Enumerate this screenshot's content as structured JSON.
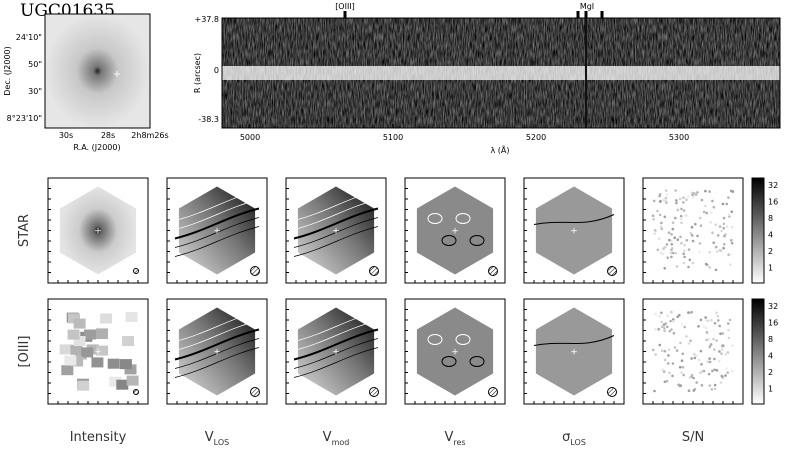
{
  "header": {
    "title": "UGC01635"
  },
  "thumbnail": {
    "y_label": "Dec. (J2000)",
    "x_label": "R.A. (J2000)",
    "y_ticks": [
      "24'10\"",
      "50\"",
      "30\"",
      "8°23'10\""
    ],
    "x_ticks": [
      "30s",
      "28s",
      "2h8m26s"
    ]
  },
  "spectrum": {
    "y_label": "R (arcsec)",
    "y_ticks": [
      "+37.8",
      "0",
      "-38.3"
    ],
    "x_label": "λ (Å)",
    "x_ticks": [
      "5000",
      "5100",
      "5200",
      "5300"
    ],
    "lines": [
      "[OIII]",
      "MgI"
    ]
  },
  "rows": [
    "STAR",
    "[OIII]"
  ],
  "columns": [
    {
      "main": "Intensity"
    },
    {
      "main": "V",
      "sub": "LOS"
    },
    {
      "main": "V",
      "sub": "mod"
    },
    {
      "main": "V",
      "sub": "res"
    },
    {
      "main": "σ",
      "sub": "LOS"
    },
    {
      "main": "S/N"
    }
  ],
  "colorbar": {
    "ticks": [
      "32",
      "16",
      "8",
      "4",
      "2",
      "1"
    ]
  }
}
